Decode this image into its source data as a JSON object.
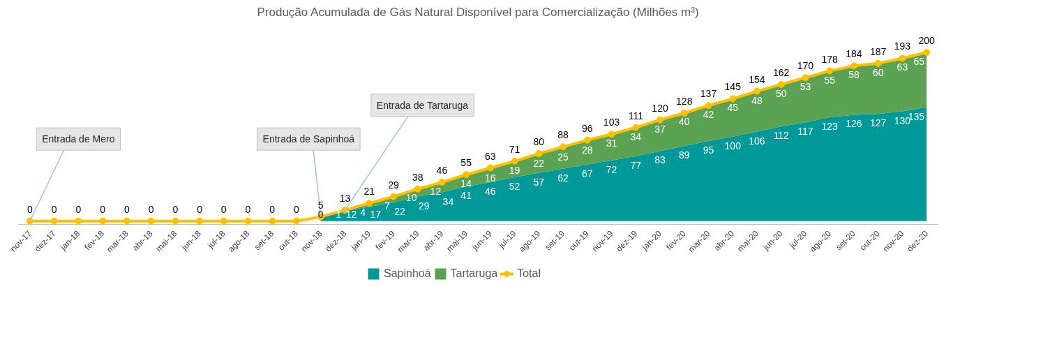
{
  "chart_data": {
    "type": "area",
    "stacked": true,
    "title": "Produção Acumulada de Gás Natural Disponível para Comercialização (Milhões m³)",
    "categories": [
      "nov-17",
      "dez-17",
      "jan-18",
      "fev-18",
      "mar-18",
      "abr-18",
      "mai-18",
      "jun-18",
      "jul-18",
      "ago-18",
      "set-18",
      "out-18",
      "nov-18",
      "dez-18",
      "jan-19",
      "fev-19",
      "mar-19",
      "abr-19",
      "mai-19",
      "jun-19",
      "jul-19",
      "ago-19",
      "set-19",
      "out-19",
      "nov-19",
      "dez-19",
      "jan-20",
      "fev-20",
      "mar-20",
      "abr-20",
      "mai-20",
      "jun-20",
      "jul-20",
      "ago-20",
      "set-20",
      "out-20",
      "nov-20",
      "dez-20"
    ],
    "series": [
      {
        "name": "Sapinhoá",
        "color": "#009999",
        "values": [
          null,
          null,
          null,
          null,
          null,
          null,
          null,
          null,
          null,
          null,
          null,
          null,
          5,
          12,
          17,
          22,
          29,
          34,
          41,
          46,
          52,
          57,
          62,
          67,
          72,
          77,
          83,
          89,
          95,
          100,
          106,
          112,
          117,
          123,
          126,
          127,
          130,
          135
        ],
        "value_labels": [
          null,
          null,
          null,
          null,
          null,
          null,
          null,
          null,
          null,
          null,
          null,
          null,
          null,
          "12",
          "17",
          "22",
          "29",
          "34",
          "41",
          "46",
          "52",
          "57",
          "62",
          "67",
          "72",
          "77",
          "83",
          "89",
          "95",
          "100",
          "106",
          "112",
          "117",
          "123",
          "126",
          "127",
          "130",
          "135"
        ]
      },
      {
        "name": "Tartaruga",
        "color": "#5ba352",
        "values": [
          null,
          null,
          null,
          null,
          null,
          null,
          null,
          null,
          null,
          null,
          null,
          null,
          0,
          1,
          4,
          7,
          10,
          12,
          14,
          16,
          19,
          22,
          25,
          28,
          31,
          34,
          37,
          40,
          42,
          45,
          48,
          50,
          53,
          55,
          58,
          60,
          63,
          65
        ],
        "value_labels": [
          null,
          null,
          null,
          null,
          null,
          null,
          null,
          null,
          null,
          null,
          null,
          null,
          "0",
          "1",
          "4",
          "7",
          "10",
          "12",
          "14",
          "16",
          "19",
          "22",
          "25",
          "28",
          "31",
          "34",
          "37",
          "40",
          "42",
          "45",
          "48",
          "50",
          "53",
          "55",
          "58",
          "60",
          "63",
          "65"
        ]
      },
      {
        "name": "Total",
        "type": "line",
        "color": "#ffc000",
        "marker": "circle",
        "values": [
          0,
          0,
          0,
          0,
          0,
          0,
          0,
          0,
          0,
          0,
          0,
          0,
          5,
          13,
          21,
          29,
          38,
          46,
          55,
          63,
          71,
          80,
          88,
          96,
          103,
          111,
          120,
          128,
          137,
          145,
          154,
          162,
          170,
          178,
          184,
          187,
          193,
          200
        ],
        "value_labels": [
          "0",
          "0",
          "0",
          "0",
          "0",
          "0",
          "0",
          "0",
          "0",
          "0",
          "0",
          "0",
          "5",
          "13",
          "21",
          "29",
          "38",
          "46",
          "55",
          "63",
          "71",
          "80",
          "88",
          "96",
          "103",
          "111",
          "120",
          "128",
          "137",
          "145",
          "154",
          "162",
          "170",
          "178",
          "184",
          "187",
          "193",
          "200"
        ]
      }
    ],
    "annotations": [
      {
        "text": "Entrada de Mero",
        "x": "nov-17",
        "y": 0
      },
      {
        "text": "Entrada de Sapinhoá",
        "x": "nov-18",
        "y": 5
      },
      {
        "text": "Entrada de Tartaruga",
        "x": "dez-18",
        "y": 13
      }
    ],
    "legend": "bottom",
    "grid": false
  }
}
